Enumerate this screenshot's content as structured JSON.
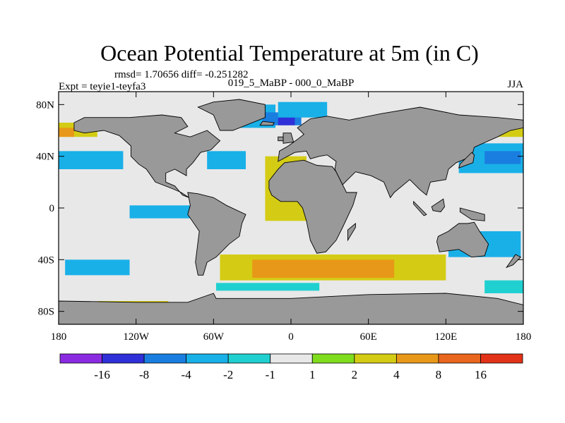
{
  "chart_data": {
    "type": "heatmap",
    "title": "Ocean Potential Temperature at 5m (in C)",
    "stats_text": "rmsd= 1.70656 diff= -0.251282",
    "experiment": "Expt = teyie1-teyfa3",
    "comparison": "019_5_MaBP - 000_0_MaBP",
    "season": "JJA",
    "x_ticks": [
      "180",
      "120W",
      "60W",
      "0",
      "60E",
      "120E",
      "180"
    ],
    "x_tick_values": [
      -180,
      -120,
      -60,
      0,
      60,
      120,
      180
    ],
    "y_ticks": [
      "80N",
      "40N",
      "0",
      "40S",
      "80S"
    ],
    "y_tick_values": [
      80,
      40,
      0,
      -40,
      -80
    ],
    "xlim": [
      -180,
      180
    ],
    "ylim": [
      -90,
      90
    ],
    "colorbar": {
      "labels": [
        "-16",
        "-8",
        "-4",
        "-2",
        "-1",
        "1",
        "2",
        "4",
        "8",
        "16"
      ],
      "levels": [
        -16,
        -8,
        -4,
        -2,
        -1,
        1,
        2,
        4,
        8,
        16
      ],
      "colors": [
        "#8a2be2",
        "#2f30d8",
        "#1a7ee0",
        "#19b0e8",
        "#20d0d0",
        "#e8e8e8",
        "#80dd1e",
        "#d4cc14",
        "#e89818",
        "#e8661e",
        "#e23218"
      ]
    },
    "land_color": "#999999",
    "neutral_ocean_color": "#e8e8e8",
    "anomaly_regions": [
      {
        "level": "-2",
        "lon": [
          -180,
          -130
        ],
        "lat": [
          30,
          44
        ]
      },
      {
        "level": "-2",
        "lon": [
          -175,
          -125
        ],
        "lat": [
          -52,
          -40
        ]
      },
      {
        "level": "-2",
        "lon": [
          -125,
          -78
        ],
        "lat": [
          -8,
          2
        ]
      },
      {
        "level": "-2",
        "lon": [
          -65,
          -35
        ],
        "lat": [
          30,
          44
        ]
      },
      {
        "level": "-2",
        "lon": [
          -48,
          -12
        ],
        "lat": [
          62,
          80
        ]
      },
      {
        "level": "-4",
        "lon": [
          -22,
          8
        ],
        "lat": [
          64,
          74
        ]
      },
      {
        "level": "-8",
        "lon": [
          -10,
          3
        ],
        "lat": [
          64,
          70
        ]
      },
      {
        "level": "-2",
        "lon": [
          -10,
          28
        ],
        "lat": [
          70,
          82
        ]
      },
      {
        "level": "-1",
        "lon": [
          -58,
          22
        ],
        "lat": [
          -64,
          -58
        ]
      },
      {
        "level": "-2",
        "lon": [
          130,
          180
        ],
        "lat": [
          27,
          50
        ]
      },
      {
        "level": "-4",
        "lon": [
          150,
          178
        ],
        "lat": [
          34,
          44
        ]
      },
      {
        "level": "-2",
        "lon": [
          122,
          178
        ],
        "lat": [
          -38,
          -18
        ]
      },
      {
        "level": "-1",
        "lon": [
          150,
          180
        ],
        "lat": [
          -66,
          -56
        ]
      },
      {
        "level": "2",
        "lon": [
          -180,
          -150
        ],
        "lat": [
          55,
          66
        ]
      },
      {
        "level": "4",
        "lon": [
          -180,
          -168
        ],
        "lat": [
          55,
          62
        ]
      },
      {
        "level": "2",
        "lon": [
          -150,
          -95
        ],
        "lat": [
          -82,
          -72
        ]
      },
      {
        "level": "2",
        "lon": [
          -20,
          12
        ],
        "lat": [
          -10,
          40
        ]
      },
      {
        "level": "2",
        "lon": [
          -55,
          120
        ],
        "lat": [
          -56,
          -36
        ]
      },
      {
        "level": "4",
        "lon": [
          -30,
          80
        ],
        "lat": [
          -54,
          -40
        ]
      },
      {
        "level": "2",
        "lon": [
          160,
          180
        ],
        "lat": [
          55,
          66
        ]
      }
    ]
  }
}
